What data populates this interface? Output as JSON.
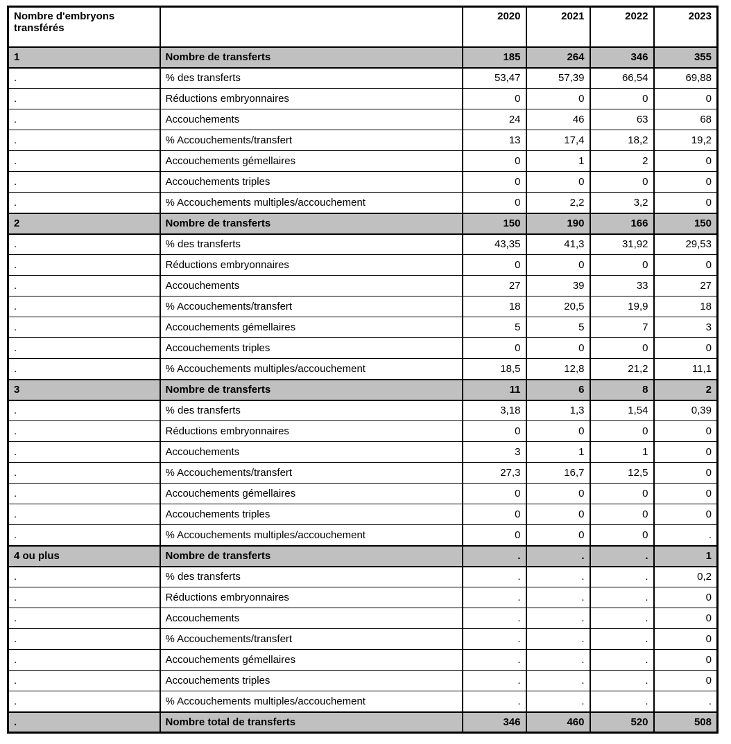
{
  "table": {
    "corner_header_line1": "Nombre d'embryons",
    "corner_header_line2": "transférés",
    "empty_header": "",
    "years": [
      "2020",
      "2021",
      "2022",
      "2023"
    ],
    "section_row_label": "Nombre de transferts",
    "row_labels": [
      "% des transferts",
      "Réductions embryonnaires",
      "Accouchements",
      "% Accouchements/transfert",
      "Accouchements gémellaires",
      "Accouchements triples",
      "% Accouchements multiples/accouchement"
    ],
    "placeholder_dot": ".",
    "sections": [
      {
        "group": "1",
        "transfers": [
          "185",
          "264",
          "346",
          "355"
        ],
        "rows": [
          [
            "53,47",
            "57,39",
            "66,54",
            "69,88"
          ],
          [
            "0",
            "0",
            "0",
            "0"
          ],
          [
            "24",
            "46",
            "63",
            "68"
          ],
          [
            "13",
            "17,4",
            "18,2",
            "19,2"
          ],
          [
            "0",
            "1",
            "2",
            "0"
          ],
          [
            "0",
            "0",
            "0",
            "0"
          ],
          [
            "0",
            "2,2",
            "3,2",
            "0"
          ]
        ]
      },
      {
        "group": "2",
        "transfers": [
          "150",
          "190",
          "166",
          "150"
        ],
        "rows": [
          [
            "43,35",
            "41,3",
            "31,92",
            "29,53"
          ],
          [
            "0",
            "0",
            "0",
            "0"
          ],
          [
            "27",
            "39",
            "33",
            "27"
          ],
          [
            "18",
            "20,5",
            "19,9",
            "18"
          ],
          [
            "5",
            "5",
            "7",
            "3"
          ],
          [
            "0",
            "0",
            "0",
            "0"
          ],
          [
            "18,5",
            "12,8",
            "21,2",
            "11,1"
          ]
        ]
      },
      {
        "group": "3",
        "transfers": [
          "11",
          "6",
          "8",
          "2"
        ],
        "rows": [
          [
            "3,18",
            "1,3",
            "1,54",
            "0,39"
          ],
          [
            "0",
            "0",
            "0",
            "0"
          ],
          [
            "3",
            "1",
            "1",
            "0"
          ],
          [
            "27,3",
            "16,7",
            "12,5",
            "0"
          ],
          [
            "0",
            "0",
            "0",
            "0"
          ],
          [
            "0",
            "0",
            "0",
            "0"
          ],
          [
            "0",
            "0",
            "0",
            "."
          ]
        ]
      },
      {
        "group": "4 ou plus",
        "transfers": [
          ".",
          ".",
          ".",
          "1"
        ],
        "rows": [
          [
            ".",
            ".",
            ".",
            "0,2"
          ],
          [
            ".",
            ".",
            ".",
            "0"
          ],
          [
            ".",
            ".",
            ".",
            "0"
          ],
          [
            ".",
            ".",
            ".",
            "0"
          ],
          [
            ".",
            ".",
            ".",
            "0"
          ],
          [
            ".",
            ".",
            ".",
            "0"
          ],
          [
            ".",
            ".",
            ".",
            "."
          ]
        ]
      }
    ],
    "total": {
      "group": ".",
      "label": "Nombre total de transferts",
      "values": [
        "346",
        "460",
        "520",
        "508"
      ]
    }
  },
  "colors": {
    "section_background": "#c0c0c0",
    "border": "#000000",
    "text": "#000000",
    "page_background": "#ffffff"
  }
}
